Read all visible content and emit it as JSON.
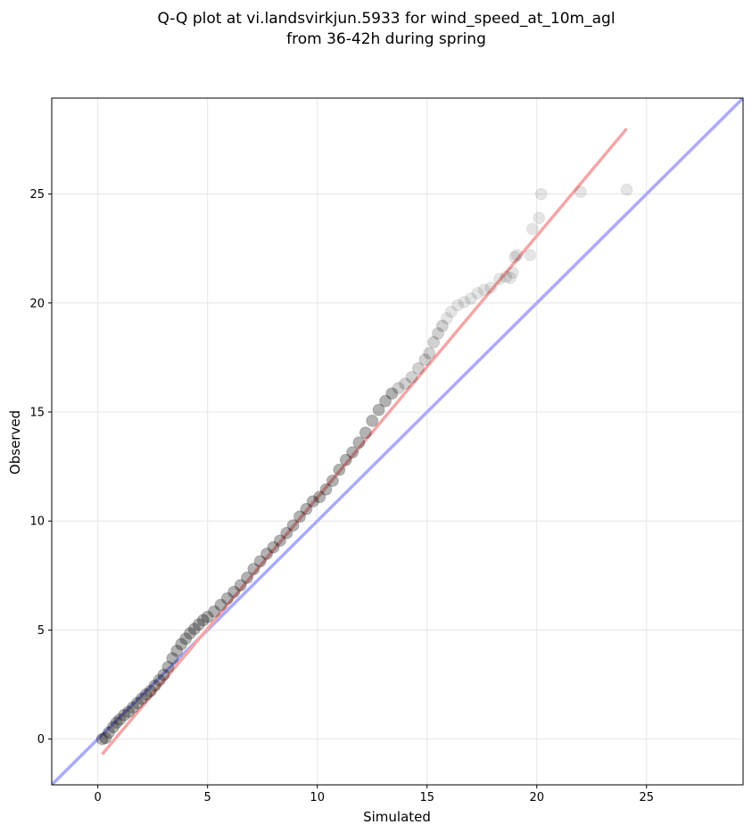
{
  "chart_data": {
    "type": "scatter",
    "title_lines": [
      "Q-Q plot at vi.landsvirkjun.5933 for wind_speed_at_10m_agl",
      "from 36-42h during spring"
    ],
    "xlabel": "Simulated",
    "ylabel": "Observed",
    "xlim": [
      -2.1,
      29.4
    ],
    "ylim": [
      -2.1,
      29.4
    ],
    "xticks": [
      0,
      5,
      10,
      15,
      20,
      25
    ],
    "yticks": [
      0,
      5,
      10,
      15,
      20,
      25
    ],
    "grid": true,
    "colors": {
      "points": "#000000",
      "identity_line": "#aaaaff",
      "fit_line": "#f4a6a6",
      "axes": "#000000",
      "grid": "#e6e6e6"
    },
    "identity_line": {
      "x": [
        -2.1,
        29.4
      ],
      "y": [
        -2.1,
        29.4
      ]
    },
    "fit_line": {
      "x": [
        0.2,
        24.1
      ],
      "y": [
        -0.7,
        28.0
      ]
    },
    "series": [
      {
        "x": [
          0.2,
          0.35,
          0.5,
          0.7,
          0.85,
          1.0,
          1.2,
          1.4,
          1.6,
          1.8,
          2.0,
          2.2,
          2.4,
          2.6,
          2.8,
          3.0,
          3.2,
          3.4,
          3.6,
          3.8,
          4.0,
          4.2,
          4.4,
          4.6,
          4.8,
          5.0,
          5.3,
          5.6,
          5.9,
          6.2,
          6.5,
          6.8,
          7.1,
          7.4,
          7.7,
          8.0,
          8.3,
          8.6,
          8.9,
          9.2,
          9.5,
          9.8,
          10.1,
          10.4,
          10.7,
          11.0,
          11.3,
          11.6,
          11.9,
          12.2,
          12.5,
          12.8,
          13.1,
          13.4,
          13.7,
          14.0,
          14.3,
          14.6,
          14.9,
          15.1,
          15.3,
          15.5,
          15.7,
          15.9,
          16.1,
          16.4,
          16.7,
          17.0,
          17.3,
          17.6,
          17.9,
          18.3,
          18.6,
          18.8,
          18.9,
          19.0,
          19.1,
          19.7,
          19.8,
          20.1,
          20.2,
          22.0,
          24.1
        ],
        "y": [
          0.0,
          0.05,
          0.3,
          0.55,
          0.75,
          0.9,
          1.1,
          1.25,
          1.45,
          1.65,
          1.85,
          2.05,
          2.2,
          2.45,
          2.7,
          2.95,
          3.3,
          3.7,
          4.05,
          4.35,
          4.6,
          4.85,
          5.05,
          5.25,
          5.45,
          5.6,
          5.85,
          6.15,
          6.45,
          6.75,
          7.05,
          7.4,
          7.8,
          8.15,
          8.5,
          8.8,
          9.1,
          9.45,
          9.8,
          10.2,
          10.55,
          10.9,
          11.1,
          11.45,
          11.85,
          12.35,
          12.8,
          13.15,
          13.6,
          14.05,
          14.6,
          15.1,
          15.5,
          15.85,
          16.1,
          16.3,
          16.6,
          17.0,
          17.4,
          17.7,
          18.2,
          18.6,
          18.95,
          19.3,
          19.6,
          19.9,
          20.05,
          20.2,
          20.45,
          20.6,
          20.7,
          21.1,
          21.2,
          21.15,
          21.4,
          22.1,
          22.2,
          22.2,
          23.4,
          23.9,
          25.0,
          25.1,
          25.2
        ]
      }
    ]
  }
}
